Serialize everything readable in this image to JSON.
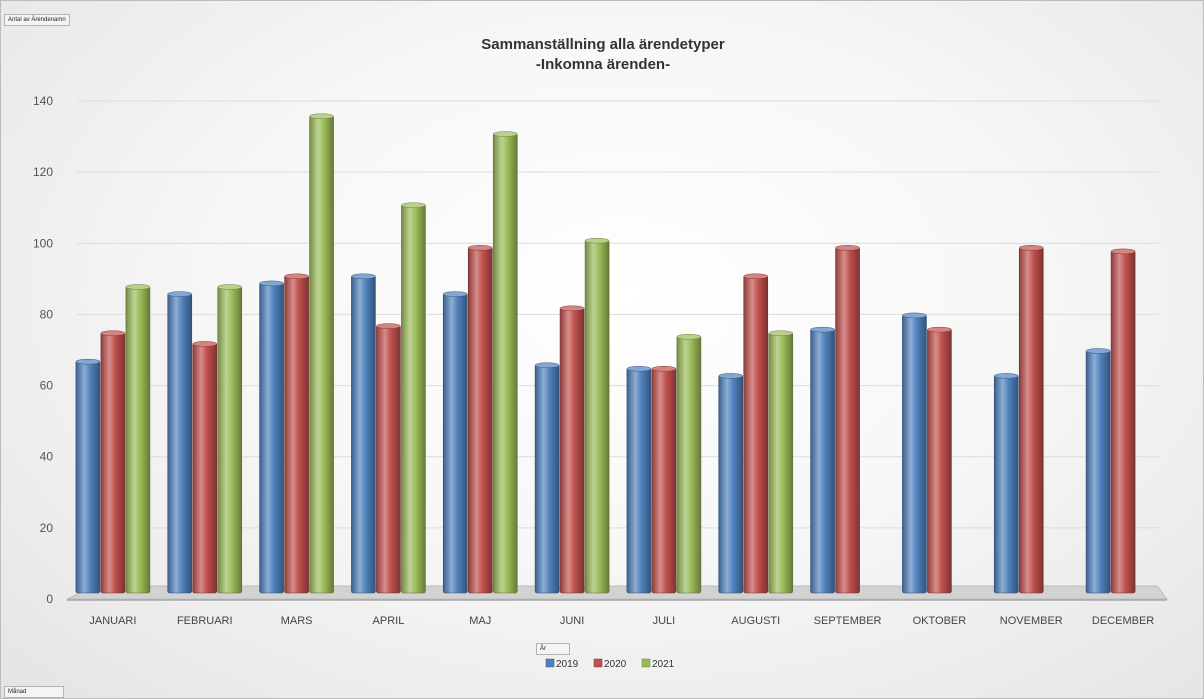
{
  "field_buttons": {
    "value_field": "Antal av Ärendenamn",
    "legend_field": "År",
    "axis_field": "Månad"
  },
  "chart_data": {
    "type": "bar",
    "title": "Sammanställning alla ärendetyper",
    "subtitle": "-Inkomna ärenden-",
    "xlabel": "",
    "ylabel": "",
    "ylim": [
      0,
      140
    ],
    "ytick_step": 20,
    "grid": true,
    "legend_position": "bottom",
    "categories": [
      "JANUARI",
      "FEBRUARI",
      "MARS",
      "APRIL",
      "MAJ",
      "JUNI",
      "JULI",
      "AUGUSTI",
      "SEPTEMBER",
      "OKTOBER",
      "NOVEMBER",
      "DECEMBER"
    ],
    "series": [
      {
        "name": "2019",
        "color": "#4f81bd",
        "values": [
          67,
          86,
          89,
          91,
          86,
          66,
          65,
          63,
          76,
          80,
          63,
          70
        ]
      },
      {
        "name": "2020",
        "color": "#c0504d",
        "values": [
          75,
          72,
          91,
          77,
          99,
          82,
          65,
          91,
          99,
          76,
          99,
          98
        ]
      },
      {
        "name": "2021",
        "color": "#9bbb59",
        "values": [
          88,
          88,
          136,
          111,
          131,
          101,
          74,
          75,
          null,
          null,
          null,
          null
        ]
      }
    ]
  }
}
